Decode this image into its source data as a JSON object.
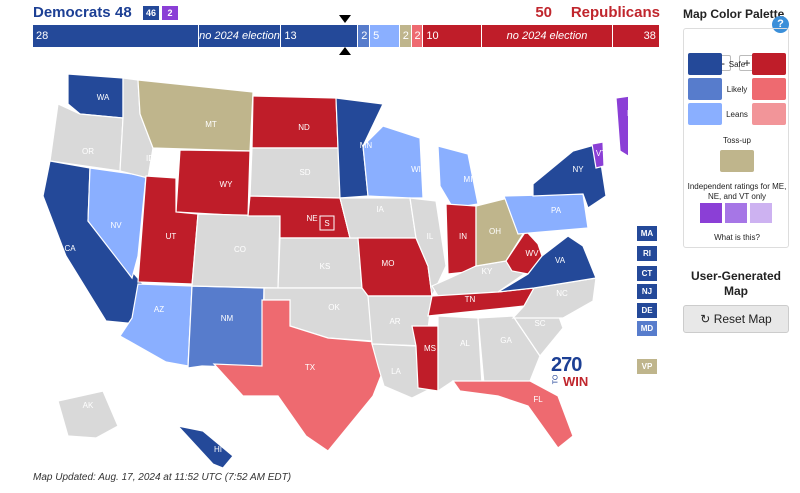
{
  "header": {
    "dem_name": "Democrats",
    "dem_total": "48",
    "rep_total": "50",
    "rep_name": "Republicans",
    "badge_dem": "46",
    "badge_ind": "2"
  },
  "bar": [
    {
      "label": "28",
      "note": "",
      "color": "#244999",
      "weight": 28
    },
    {
      "label": "",
      "note": "no 2024 election",
      "color": "#244999",
      "weight": 14
    },
    {
      "label": "13",
      "note": "",
      "color": "#244999",
      "weight": 13
    },
    {
      "label": "2",
      "note": "",
      "color": "#577ccc",
      "weight": 2
    },
    {
      "label": "5",
      "note": "",
      "color": "#8aafff",
      "weight": 5
    },
    {
      "label": "2",
      "note": "",
      "color": "#bfb58c",
      "weight": 2
    },
    {
      "label": "2",
      "note": "",
      "color": "#ee6a70",
      "weight": 2
    },
    {
      "label": "10",
      "note": "",
      "color": "#bf1d29",
      "weight": 10
    },
    {
      "label": "",
      "note": "no 2024 election",
      "color": "#bf1d29",
      "weight": 22
    },
    {
      "label": "38",
      "note": "",
      "color": "#bf1d29",
      "weight": 8
    }
  ],
  "states": {
    "WA": "D-safe",
    "OR": "none",
    "CA": "D-safe",
    "NV": "D-leans",
    "ID": "none",
    "MT": "toss",
    "WY": "R-safe",
    "UT": "R-safe",
    "AZ": "D-leans",
    "NM": "D-likely",
    "CO": "none",
    "ND": "R-safe",
    "SD": "none",
    "NE": "R-safe",
    "KS": "none",
    "OK": "none",
    "TX": "R-likely",
    "MN": "D-safe",
    "IA": "none",
    "MO": "R-safe",
    "AR": "none",
    "LA": "none",
    "WI": "D-leans",
    "IL": "none",
    "MS": "R-safe",
    "MI": "D-leans",
    "IN": "R-safe",
    "KY": "none",
    "TN": "R-safe",
    "AL": "none",
    "OH": "toss",
    "WV": "R-safe",
    "VA": "D-safe",
    "NC": "none",
    "SC": "none",
    "GA": "none",
    "FL": "R-likely",
    "PA": "D-leans",
    "NY": "D-safe",
    "ME": "I",
    "VT": "I",
    "AK": "none",
    "HI": "D-safe"
  },
  "small_states": [
    {
      "label": "MA",
      "color": "#244999"
    },
    {
      "label": "RI",
      "color": "#244999"
    },
    {
      "label": "CT",
      "color": "#244999"
    },
    {
      "label": "NJ",
      "color": "#244999"
    },
    {
      "label": "DE",
      "color": "#244999"
    },
    {
      "label": "MD",
      "color": "#577ccc"
    },
    {
      "label": "VP",
      "color": "#bfb58c"
    }
  ],
  "colors": {
    "D-safe": "#244999",
    "D-likely": "#577ccc",
    "D-leans": "#8aafff",
    "R-safe": "#bf1d29",
    "R-likely": "#ee6a70",
    "R-leans": "#f29599",
    "toss": "#bfb58c",
    "none": "#d9d9d9",
    "I": "#8b3fd6"
  },
  "ne_special": "S",
  "logo": {
    "number": "270",
    "to": "TO",
    "win": "WIN"
  },
  "updated": "Map Updated: Aug. 17, 2024 at 11:52 UTC (7:52 AM EDT)",
  "palette": {
    "title": "Map Color Palette",
    "help": "?",
    "minus": "-",
    "plus": "+",
    "safe": "Safe",
    "likely": "Likely",
    "leans": "Leans",
    "tossup": "Toss-up",
    "ind_note": "Independent ratings for ME, NE, and VT only",
    "what": "What is this?",
    "ind_colors": [
      "#8b3fd6",
      "#a676e6",
      "#cdb2f1"
    ]
  },
  "user_map": "User-Generated Map",
  "reset": "Reset Map"
}
